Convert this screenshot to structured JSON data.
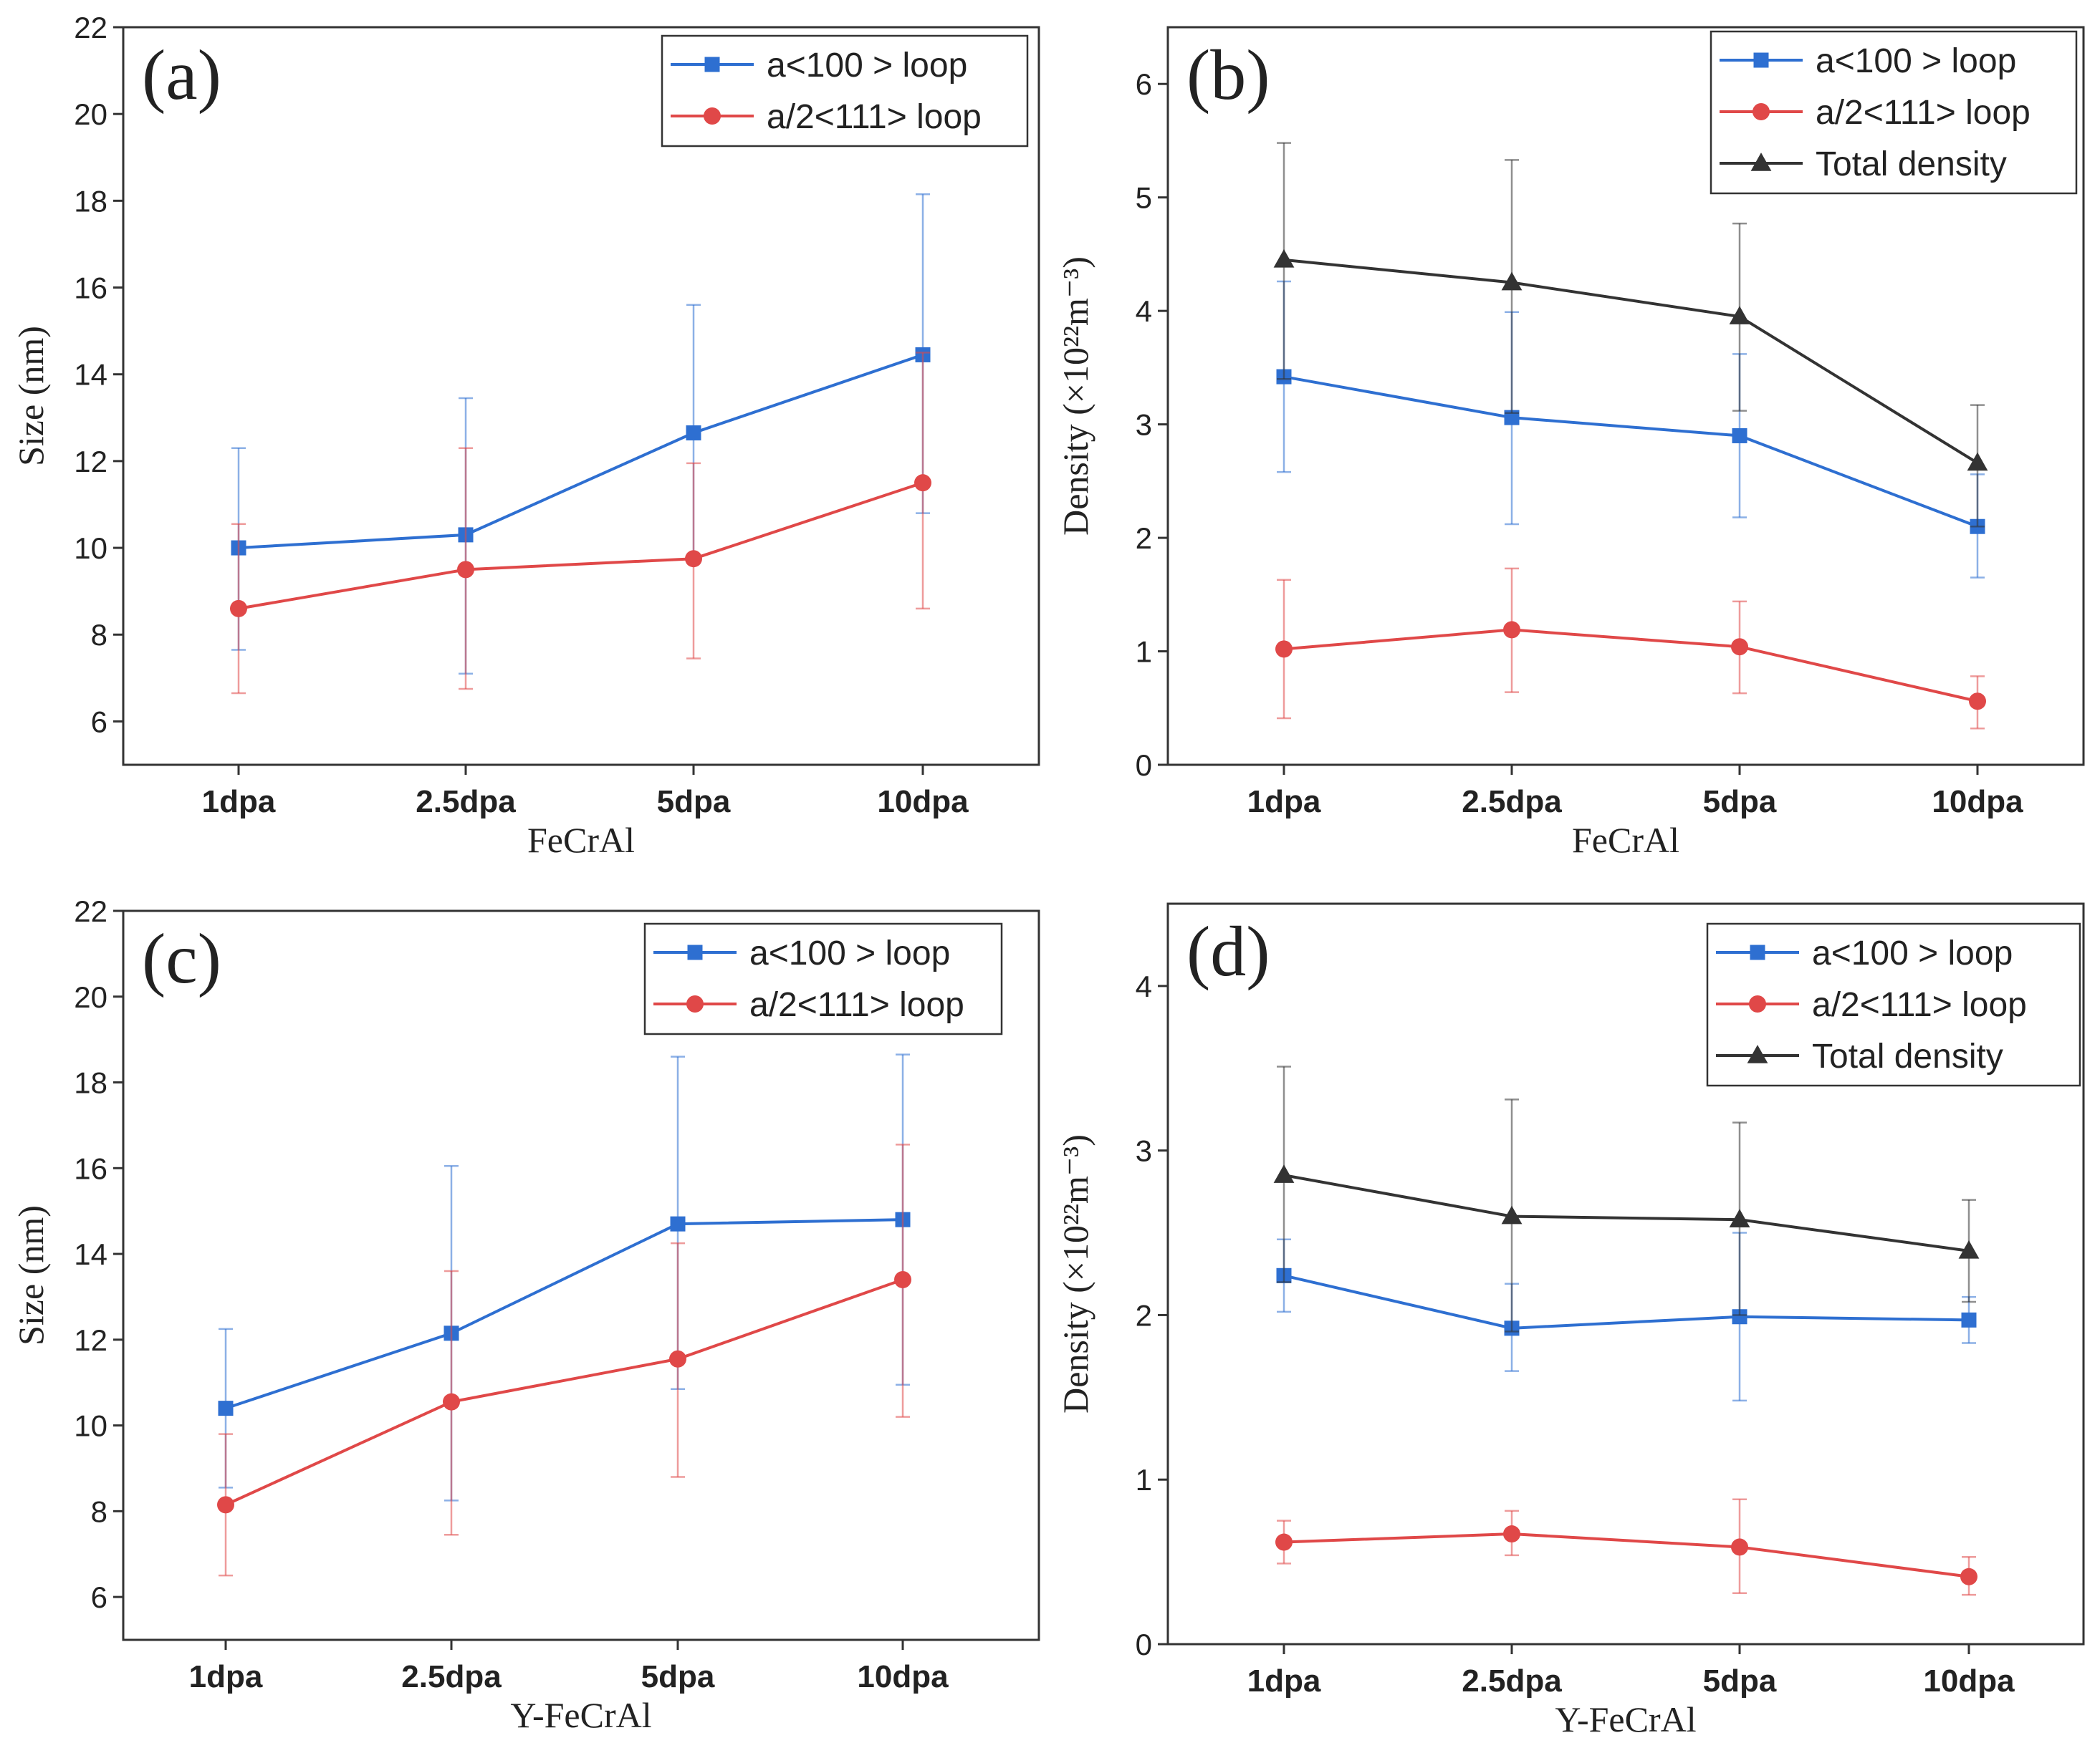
{
  "chart_data": [
    {
      "type": "line",
      "panel": "(a)",
      "categories": [
        "1dpa",
        "2.5dpa",
        "5dpa",
        "10dpa"
      ],
      "xlabel": "FeCrAl",
      "ylabel": "Size (nm)",
      "ylim": [
        5,
        22
      ],
      "yticks": [
        6,
        8,
        10,
        12,
        14,
        16,
        18,
        20,
        22
      ],
      "legend_position": "top-right",
      "series": [
        {
          "name": "a<100 > loop",
          "color": "#2e6fd1",
          "marker": "square",
          "values": [
            10.0,
            10.3,
            12.65,
            14.45
          ],
          "err_low": [
            7.65,
            7.1,
            9.65,
            10.8
          ],
          "err_high": [
            12.3,
            13.45,
            15.6,
            18.15
          ]
        },
        {
          "name": "a/2<111> loop",
          "color": "#e04848",
          "marker": "circle",
          "values": [
            8.6,
            9.5,
            9.75,
            11.5
          ],
          "err_low": [
            6.65,
            6.75,
            7.45,
            8.6
          ],
          "err_high": [
            10.55,
            12.3,
            11.95,
            14.5
          ]
        }
      ]
    },
    {
      "type": "line",
      "panel": "(b)",
      "categories": [
        "1dpa",
        "2.5dpa",
        "5dpa",
        "10dpa"
      ],
      "xlabel": "FeCrAl",
      "ylabel": "Density (×10²²m⁻³)",
      "ylim": [
        0,
        6.5
      ],
      "yticks": [
        0,
        1,
        2,
        3,
        4,
        5,
        6
      ],
      "legend_position": "top-right",
      "series": [
        {
          "name": "a<100 > loop",
          "color": "#2e6fd1",
          "marker": "square",
          "values": [
            3.42,
            3.06,
            2.9,
            2.1
          ],
          "err_low": [
            2.58,
            2.12,
            2.18,
            1.65
          ],
          "err_high": [
            4.26,
            3.99,
            3.62,
            2.56
          ]
        },
        {
          "name": "a/2<111> loop",
          "color": "#e04848",
          "marker": "circle",
          "values": [
            1.02,
            1.19,
            1.04,
            0.56
          ],
          "err_low": [
            0.41,
            0.64,
            0.63,
            0.32
          ],
          "err_high": [
            1.63,
            1.73,
            1.44,
            0.78
          ]
        },
        {
          "name": "Total density",
          "color": "#333333",
          "marker": "triangle",
          "values": [
            4.45,
            4.25,
            3.95,
            2.66
          ],
          "err_low": [
            3.4,
            3.1,
            3.12,
            2.1
          ],
          "err_high": [
            5.48,
            5.33,
            4.77,
            3.17
          ]
        }
      ]
    },
    {
      "type": "line",
      "panel": "(c)",
      "categories": [
        "1dpa",
        "2.5dpa",
        "5dpa",
        "10dpa"
      ],
      "xlabel": "Y-FeCrAl",
      "ylabel": "Size (nm)",
      "ylim": [
        5,
        22
      ],
      "yticks": [
        6,
        8,
        10,
        12,
        14,
        16,
        18,
        20,
        22
      ],
      "legend_position": "top-right",
      "series": [
        {
          "name": "a<100 > loop",
          "color": "#2e6fd1",
          "marker": "square",
          "values": [
            10.4,
            12.15,
            14.7,
            14.8
          ],
          "err_low": [
            8.55,
            8.25,
            10.85,
            10.95
          ],
          "err_high": [
            12.25,
            16.05,
            18.6,
            18.65
          ]
        },
        {
          "name": "a/2<111> loop",
          "color": "#e04848",
          "marker": "circle",
          "values": [
            8.15,
            10.55,
            11.55,
            13.4
          ],
          "err_low": [
            6.5,
            7.45,
            8.8,
            10.2
          ],
          "err_high": [
            9.8,
            13.6,
            14.25,
            16.55
          ]
        }
      ]
    },
    {
      "type": "line",
      "panel": "(d)",
      "categories": [
        "1dpa",
        "2.5dpa",
        "5dpa",
        "10dpa"
      ],
      "xlabel": "Y-FeCrAl",
      "ylabel": "Density (×10²²m⁻³)",
      "ylim": [
        0,
        4.5
      ],
      "yticks": [
        0,
        1,
        2,
        3,
        4
      ],
      "legend_position": "top-right",
      "series": [
        {
          "name": "a<100 > loop",
          "color": "#2e6fd1",
          "marker": "square",
          "values": [
            2.24,
            1.92,
            1.99,
            1.97
          ],
          "err_low": [
            2.02,
            1.66,
            1.48,
            1.83
          ],
          "err_high": [
            2.46,
            2.19,
            2.5,
            2.11
          ]
        },
        {
          "name": "a/2<111> loop",
          "color": "#e04848",
          "marker": "circle",
          "values": [
            0.62,
            0.67,
            0.59,
            0.41
          ],
          "err_low": [
            0.49,
            0.54,
            0.31,
            0.3
          ],
          "err_high": [
            0.75,
            0.81,
            0.88,
            0.53
          ]
        },
        {
          "name": "Total density",
          "color": "#333333",
          "marker": "triangle",
          "values": [
            2.85,
            2.6,
            2.58,
            2.39
          ],
          "err_low": [
            2.2,
            1.9,
            2.0,
            2.08
          ],
          "err_high": [
            3.51,
            3.31,
            3.17,
            2.7
          ]
        }
      ]
    }
  ]
}
